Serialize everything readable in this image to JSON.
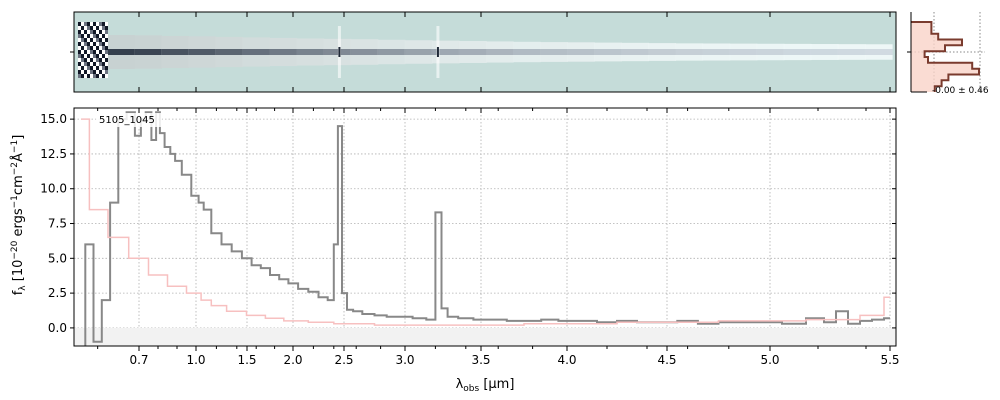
{
  "chart_data": [
    {
      "type": "heatmap",
      "panel": "2d-spectrum",
      "colormap": [
        "#c5dcd9",
        "#ffffff",
        "#111827"
      ],
      "background_color": "#c5dcd9",
      "trace_strength": [
        0.95,
        0.92,
        0.9,
        0.85,
        0.82,
        0.78,
        0.74,
        0.7,
        0.66,
        0.63,
        0.6,
        0.56,
        0.52,
        0.49,
        0.46,
        0.43,
        0.4,
        0.38,
        0.36,
        0.34,
        0.32,
        0.3,
        0.28,
        0.27,
        0.26,
        0.25,
        0.24,
        0.23,
        0.22,
        0.21
      ],
      "emission_lines_x": [
        2.46,
        3.22
      ]
    },
    {
      "type": "line",
      "panel": "1d-spectrum",
      "title": "",
      "annotation": "5105_1045",
      "xlabel_main": "λ",
      "xlabel_sub": "obs",
      "xlabel_unit": " [μm]",
      "ylabel_parts": {
        "f": "f",
        "lambda": "λ",
        "b1": " [10",
        "e1": "−20",
        "b2": " ergs",
        "e2": "−1",
        "b3": "cm",
        "e3": "−2",
        "b4": "Å",
        "e4": "−1",
        "b5": "]"
      },
      "x_ticks": [
        {
          "v": 0.7,
          "label": "0.7"
        },
        {
          "v": 1.0,
          "label": "1.0"
        },
        {
          "v": 1.5,
          "label": "1.5"
        },
        {
          "v": 2.0,
          "label": "2.0"
        },
        {
          "v": 2.5,
          "label": "2.5"
        },
        {
          "v": 3.0,
          "label": "3.0"
        },
        {
          "v": 3.5,
          "label": "3.5"
        },
        {
          "v": 4.0,
          "label": "4.0"
        },
        {
          "v": 4.5,
          "label": "4.5"
        },
        {
          "v": 5.0,
          "label": "5.0"
        },
        {
          "v": 5.5,
          "label": "5.5"
        }
      ],
      "x_minor_ticks": [
        0.6,
        0.8,
        0.9,
        1.2,
        1.4,
        1.6,
        1.8,
        2.2,
        2.4,
        2.6,
        2.8,
        3.2,
        3.4,
        3.6,
        3.8,
        4.2,
        4.4,
        4.6,
        4.8,
        5.2,
        5.4
      ],
      "y_ticks": [
        0.0,
        2.5,
        5.0,
        7.5,
        10.0,
        12.5,
        15.0
      ],
      "y_tick_labels": [
        "0.0",
        "2.5",
        "5.0",
        "7.5",
        "10.0",
        "12.5",
        "15.0"
      ],
      "ylim": [
        -1.3,
        15.8
      ],
      "grid": true,
      "series": [
        {
          "role": "flux",
          "color": "#888888",
          "x": [
            0.56,
            0.58,
            0.6,
            0.62,
            0.64,
            0.66,
            0.68,
            0.7,
            0.72,
            0.75,
            0.78,
            0.8,
            0.82,
            0.85,
            0.88,
            0.9,
            0.95,
            1.0,
            1.05,
            1.1,
            1.2,
            1.3,
            1.4,
            1.5,
            1.6,
            1.7,
            1.8,
            1.9,
            2.0,
            2.1,
            2.2,
            2.3,
            2.38,
            2.42,
            2.46,
            2.5,
            2.55,
            2.6,
            2.7,
            2.8,
            2.9,
            3.0,
            3.1,
            3.18,
            3.22,
            3.26,
            3.3,
            3.4,
            3.5,
            3.6,
            3.7,
            3.8,
            3.9,
            4.0,
            4.1,
            4.2,
            4.3,
            4.4,
            4.5,
            4.6,
            4.7,
            4.8,
            4.9,
            5.0,
            5.1,
            5.2,
            5.25,
            5.3,
            5.35,
            5.4,
            5.45,
            5.5
          ],
          "y": [
            -1.5,
            6.0,
            -1.0,
            2.0,
            9.0,
            15.0,
            15.5,
            13.8,
            15.0,
            15.5,
            13.5,
            15.5,
            14.0,
            13.0,
            12.5,
            12.0,
            11.0,
            9.5,
            9.0,
            8.5,
            6.8,
            6.0,
            5.5,
            5.0,
            4.5,
            4.3,
            3.8,
            3.5,
            3.2,
            2.8,
            2.6,
            2.2,
            2.0,
            6.0,
            14.5,
            2.5,
            1.3,
            1.2,
            1.0,
            0.9,
            0.8,
            0.8,
            0.7,
            0.6,
            8.3,
            1.4,
            0.8,
            0.7,
            0.6,
            0.6,
            0.5,
            0.5,
            0.6,
            0.5,
            0.5,
            0.4,
            0.5,
            0.4,
            0.4,
            0.5,
            0.3,
            0.4,
            0.4,
            0.4,
            0.3,
            0.7,
            0.4,
            1.2,
            0.3,
            0.5,
            0.6,
            0.7
          ]
        },
        {
          "role": "error",
          "color": "#f7c0c0",
          "x": [
            0.56,
            0.6,
            0.65,
            0.7,
            0.8,
            0.9,
            1.0,
            1.1,
            1.2,
            1.4,
            1.6,
            1.8,
            2.0,
            2.3,
            2.5,
            3.0,
            3.5,
            4.0,
            4.5,
            5.0,
            5.3,
            5.45,
            5.5
          ],
          "y": [
            15.0,
            8.5,
            6.5,
            5.0,
            3.8,
            3.0,
            2.5,
            2.0,
            1.6,
            1.2,
            0.9,
            0.7,
            0.5,
            0.4,
            0.3,
            0.2,
            0.2,
            0.3,
            0.4,
            0.5,
            0.6,
            0.9,
            2.2
          ]
        }
      ]
    },
    {
      "type": "histogram",
      "panel": "profile",
      "value_label": "-0.00 ± 0.46",
      "steps": [
        0.3,
        0.3,
        0.4,
        0.75,
        0.5,
        0.2,
        0.25,
        0.9,
        1.0,
        0.55,
        0.45,
        0.35
      ],
      "line_color": "#7a3b2e",
      "fill_color": "#f9d3c8"
    }
  ]
}
